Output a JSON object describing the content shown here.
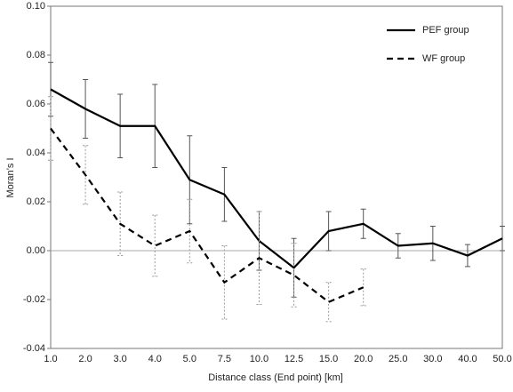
{
  "chart_data": {
    "type": "line",
    "x_label": "Distance class (End point) [km]",
    "y_label": "Moran’s I",
    "categories": [
      "1.0",
      "2.0",
      "3.0",
      "4.0",
      "5.0",
      "7.5",
      "10.0",
      "12.5",
      "15.0",
      "20.0",
      "25.0",
      "30.0",
      "40.0",
      "50.0"
    ],
    "series": [
      {
        "name": "PEF group",
        "color": "#000000",
        "dash": "solid",
        "values": [
          0.066,
          0.058,
          0.051,
          0.051,
          0.029,
          0.023,
          0.004,
          -0.007,
          0.008,
          0.011,
          0.002,
          0.003,
          -0.002,
          0.005
        ],
        "errors": [
          0.011,
          0.012,
          0.013,
          0.017,
          0.018,
          0.011,
          0.012,
          0.012,
          0.008,
          0.006,
          0.005,
          0.007,
          0.0045,
          0.005
        ]
      },
      {
        "name": "WF group",
        "color": "#000000",
        "dash": "dashed",
        "values": [
          0.05,
          0.031,
          0.011,
          0.002,
          0.008,
          -0.013,
          -0.003,
          -0.01,
          -0.021,
          -0.015,
          null,
          null,
          null,
          null
        ],
        "errors": [
          0.013,
          0.012,
          0.013,
          0.0125,
          0.013,
          0.015,
          0.019,
          0.013,
          0.008,
          0.0075,
          null,
          null,
          null,
          null
        ]
      }
    ],
    "ylim": [
      -0.04,
      0.1
    ],
    "yticks": [
      {
        "value": -0.04,
        "label": "-0.04"
      },
      {
        "value": -0.02,
        "label": "-0.02"
      },
      {
        "value": 0,
        "label": "0.00"
      },
      {
        "value": 0.02,
        "label": "0.02"
      },
      {
        "value": 0.04,
        "label": "0.04"
      },
      {
        "value": 0.06,
        "label": "0.06"
      },
      {
        "value": 0.08,
        "label": "0.08"
      },
      {
        "value": 0.1,
        "label": "0.10"
      }
    ],
    "legend": "upper right",
    "grid": false
  }
}
